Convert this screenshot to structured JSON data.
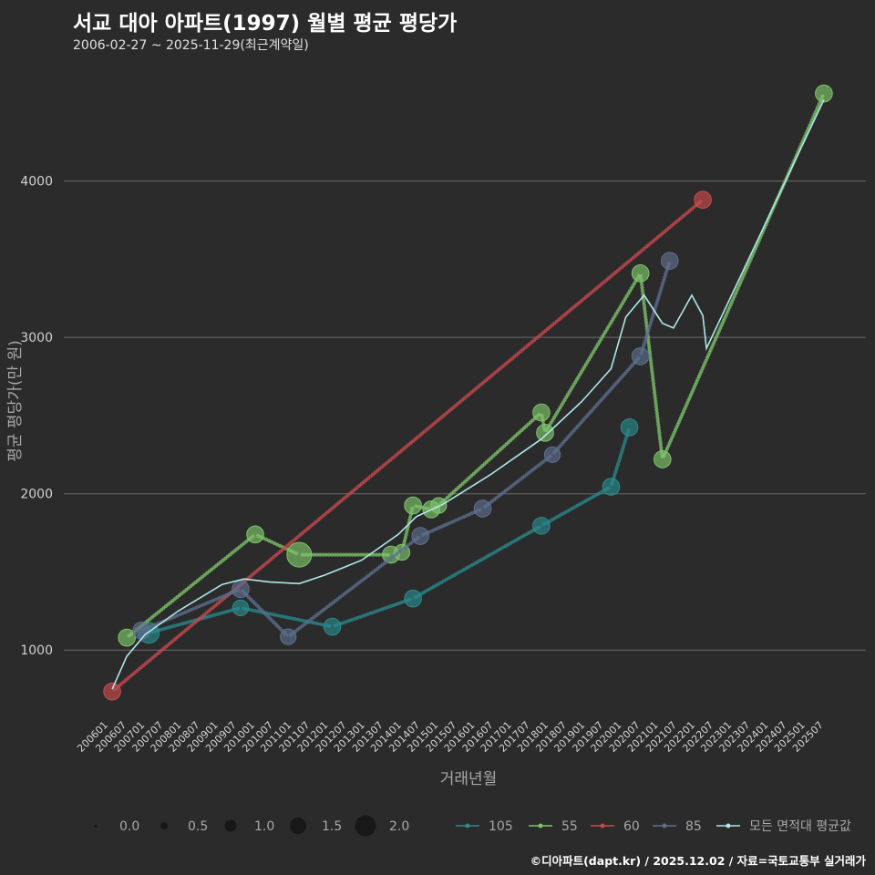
{
  "header": {
    "title": "서교 대아 아파트(1997) 월별 평균 평당가",
    "subtitle": "2006-02-27 ~ 2025-11-29(최근계약일)"
  },
  "caption": "©디아파트(dapt.kr) / 2025.12.02 / 자료=국토교통부 실거래가",
  "chart_data": {
    "type": "line",
    "title": "서교 대아 아파트(1997) 월별 평균 평당가",
    "xlabel": "거래년월",
    "ylabel": "평균 평당가(만 원)",
    "yticks": [
      1000,
      2000,
      3000,
      4000
    ],
    "ylim": [
      570,
      4750
    ],
    "xlim": [
      2006.0,
      2026.0
    ],
    "xtick_labels": [
      "200601",
      "200607",
      "200701",
      "200707",
      "200801",
      "200807",
      "200901",
      "200907",
      "201001",
      "201007",
      "201101",
      "201107",
      "201201",
      "201207",
      "201301",
      "201307",
      "201401",
      "201407",
      "201501",
      "201507",
      "201601",
      "201607",
      "201701",
      "201707",
      "201801",
      "201807",
      "201901",
      "201907",
      "202001",
      "202007",
      "202101",
      "202107",
      "202201",
      "202207",
      "202301",
      "202307",
      "202401",
      "202407",
      "202501",
      "202507"
    ],
    "series": [
      {
        "name": "105",
        "color": "#2a8a8c",
        "points": [
          {
            "x": 2007.2,
            "y": 1110,
            "size": 1.2
          },
          {
            "x": 2009.7,
            "y": 1270,
            "size": 0.8
          },
          {
            "x": 2012.2,
            "y": 1150,
            "size": 0.9
          },
          {
            "x": 2014.4,
            "y": 1330,
            "size": 0.9
          },
          {
            "x": 2017.9,
            "y": 1795,
            "size": 0.9
          },
          {
            "x": 2019.8,
            "y": 2045,
            "size": 0.9
          },
          {
            "x": 2020.3,
            "y": 2425,
            "size": 0.9
          }
        ]
      },
      {
        "name": "55",
        "color": "#7ec46a",
        "points": [
          {
            "x": 2006.6,
            "y": 1080,
            "size": 0.9
          },
          {
            "x": 2010.1,
            "y": 1740,
            "size": 0.9
          },
          {
            "x": 2011.3,
            "y": 1610,
            "size": 1.5
          },
          {
            "x": 2013.8,
            "y": 1610,
            "size": 0.9
          },
          {
            "x": 2014.1,
            "y": 1625,
            "size": 0.8
          },
          {
            "x": 2014.4,
            "y": 1925,
            "size": 0.9
          },
          {
            "x": 2014.9,
            "y": 1900,
            "size": 0.9
          },
          {
            "x": 2015.1,
            "y": 1925,
            "size": 0.8
          },
          {
            "x": 2017.9,
            "y": 2520,
            "size": 0.9
          },
          {
            "x": 2018.0,
            "y": 2390,
            "size": 0.9
          },
          {
            "x": 2020.6,
            "y": 3410,
            "size": 0.9
          },
          {
            "x": 2021.2,
            "y": 2220,
            "size": 0.9
          },
          {
            "x": 2025.6,
            "y": 4560,
            "size": 0.9
          }
        ]
      },
      {
        "name": "60",
        "color": "#c94a4e",
        "points": [
          {
            "x": 2006.2,
            "y": 735,
            "size": 0.9
          },
          {
            "x": 2022.3,
            "y": 3880,
            "size": 0.9
          }
        ]
      },
      {
        "name": "85",
        "color": "#5f6f8f",
        "points": [
          {
            "x": 2007.0,
            "y": 1125,
            "size": 0.9
          },
          {
            "x": 2009.7,
            "y": 1390,
            "size": 0.9
          },
          {
            "x": 2011.0,
            "y": 1085,
            "size": 0.8
          },
          {
            "x": 2014.6,
            "y": 1730,
            "size": 0.9
          },
          {
            "x": 2016.3,
            "y": 1905,
            "size": 0.9
          },
          {
            "x": 2018.2,
            "y": 2250,
            "size": 0.8
          },
          {
            "x": 2020.6,
            "y": 2880,
            "size": 0.9
          },
          {
            "x": 2021.4,
            "y": 3490,
            "size": 0.9
          }
        ]
      }
    ],
    "average": {
      "name": "모든 면적대 평균값",
      "color": "#aee8e8",
      "points": [
        {
          "x": 2006.2,
          "y": 750
        },
        {
          "x": 2006.6,
          "y": 960
        },
        {
          "x": 2007.1,
          "y": 1100
        },
        {
          "x": 2008.0,
          "y": 1250
        },
        {
          "x": 2009.2,
          "y": 1420
        },
        {
          "x": 2009.8,
          "y": 1455
        },
        {
          "x": 2010.5,
          "y": 1435
        },
        {
          "x": 2011.3,
          "y": 1425
        },
        {
          "x": 2012.0,
          "y": 1480
        },
        {
          "x": 2013.0,
          "y": 1575
        },
        {
          "x": 2014.0,
          "y": 1740
        },
        {
          "x": 2014.5,
          "y": 1855
        },
        {
          "x": 2015.2,
          "y": 1930
        },
        {
          "x": 2016.5,
          "y": 2120
        },
        {
          "x": 2017.9,
          "y": 2350
        },
        {
          "x": 2019.0,
          "y": 2590
        },
        {
          "x": 2019.8,
          "y": 2800
        },
        {
          "x": 2020.2,
          "y": 3130
        },
        {
          "x": 2020.7,
          "y": 3270
        },
        {
          "x": 2021.2,
          "y": 3090
        },
        {
          "x": 2021.5,
          "y": 3060
        },
        {
          "x": 2022.0,
          "y": 3270
        },
        {
          "x": 2022.3,
          "y": 3140
        },
        {
          "x": 2022.4,
          "y": 2930
        },
        {
          "x": 2025.6,
          "y": 4520
        }
      ]
    },
    "size_legend": [
      {
        "label": "0.0",
        "size": 0.0
      },
      {
        "label": "0.5",
        "size": 0.5
      },
      {
        "label": "1.0",
        "size": 1.0
      },
      {
        "label": "1.5",
        "size": 1.5
      },
      {
        "label": "2.0",
        "size": 2.0
      }
    ],
    "legend_position": "bottom"
  }
}
